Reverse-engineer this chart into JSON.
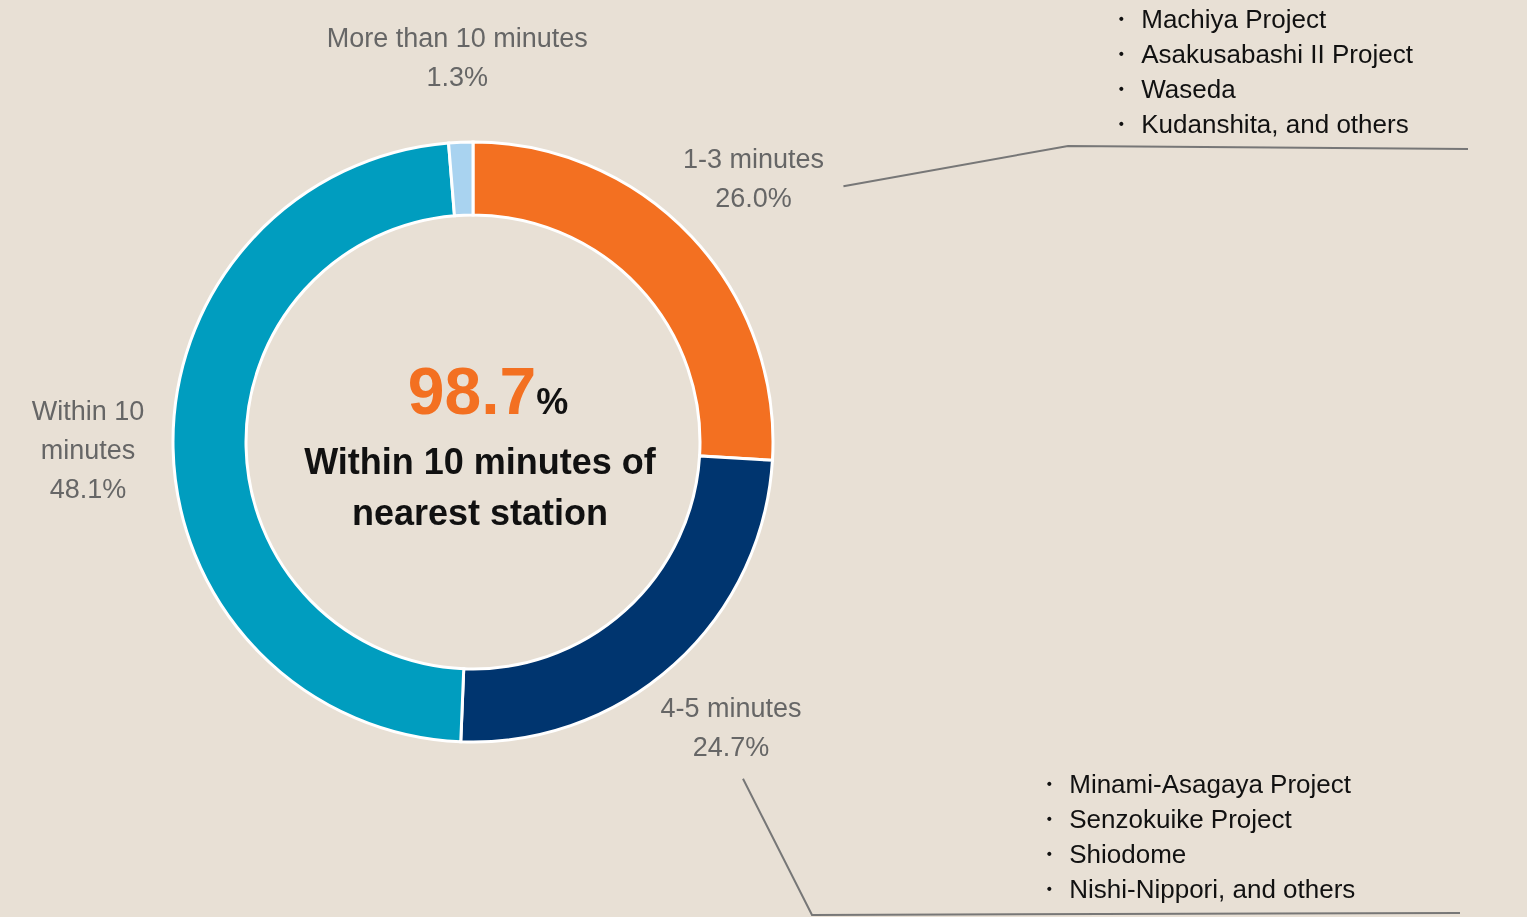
{
  "chart_data": {
    "type": "donut",
    "categories": [
      "1-3 minutes",
      "4-5 minutes",
      "Within 10 minutes",
      "More than 10 minutes"
    ],
    "values": [
      26.0,
      24.7,
      48.1,
      1.3
    ],
    "colors": [
      "#f37021",
      "#00356f",
      "#009dbf",
      "#a9d3f0"
    ],
    "value_labels": [
      "26.0%",
      "24.7%",
      "48.1%",
      "1.3%"
    ],
    "annotations": [
      "98.7%",
      "Within 10 minutes of nearest station",
      "・ Machiya Project",
      "・ Asakusabashi II Project",
      "・ Waseda",
      "・ Kudanshita, and others",
      "・ Minami-Asagaya Project",
      "・ Senzokuike Project",
      "・ Shiodome",
      "・ Nishi-Nippori, and others"
    ]
  }
}
